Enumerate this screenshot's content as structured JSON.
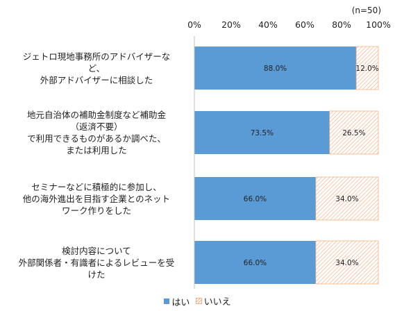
{
  "note": "(n=50)",
  "chart_data": {
    "type": "bar",
    "orientation": "horizontal",
    "stacked": true,
    "percent": true,
    "xlim": [
      0,
      100
    ],
    "ticks": [
      "0%",
      "20%",
      "40%",
      "60%",
      "80%",
      "100%"
    ],
    "categories": [
      [
        "ジェトロ現地事務所のアドバイザーな",
        "ど、",
        "外部アドバイザーに相談した"
      ],
      [
        "地元自治体の補助金制度など補助金",
        "（返済不要）",
        "で利用できるものがあるか調べた、",
        "または利用した"
      ],
      [
        "セミナーなどに積極的に参加し、",
        "他の海外進出を目指す企業とのネット",
        "ワーク作りをした"
      ],
      [
        "検討内容について",
        "外部関係者・有識者によるレビューを受",
        "けた"
      ]
    ],
    "series": [
      {
        "name": "はい",
        "color": "#5b9bd5",
        "values": [
          88.0,
          73.5,
          66.0,
          66.0
        ],
        "labels": [
          "88.0%",
          "73.5%",
          "66.0%",
          "66.0%"
        ]
      },
      {
        "name": "いいえ",
        "color": "#f4b183",
        "pattern": "hatch",
        "values": [
          12.0,
          26.5,
          34.0,
          34.0
        ],
        "labels": [
          "12.0%",
          "26.5%",
          "34.0%",
          "34.0%"
        ]
      }
    ],
    "legend_position": "bottom",
    "grid": false
  }
}
